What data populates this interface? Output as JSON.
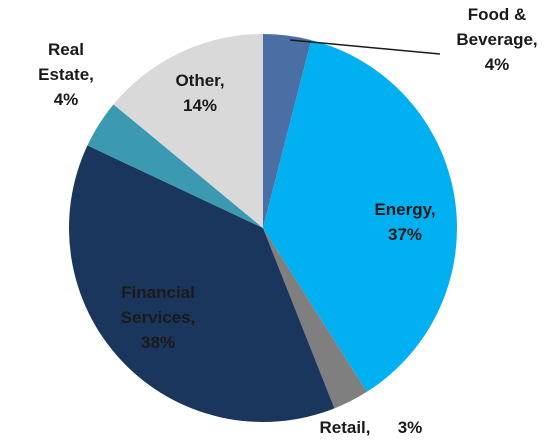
{
  "chart_data": {
    "type": "pie",
    "categories": [
      "Food & Beverage,",
      "Energy,",
      "Retail,",
      "Financial Services,",
      "Real Estate,",
      "Other,"
    ],
    "values": [
      4,
      37,
      3,
      38,
      4,
      14
    ],
    "value_labels": [
      "4%",
      "37%",
      "3%",
      "38%",
      "4%",
      "14%"
    ],
    "colors": [
      "#4a6fa5",
      "#00b0f0",
      "#7f7f7f",
      "#1b365d",
      "#3b9ab2",
      "#d9d9d9"
    ]
  }
}
